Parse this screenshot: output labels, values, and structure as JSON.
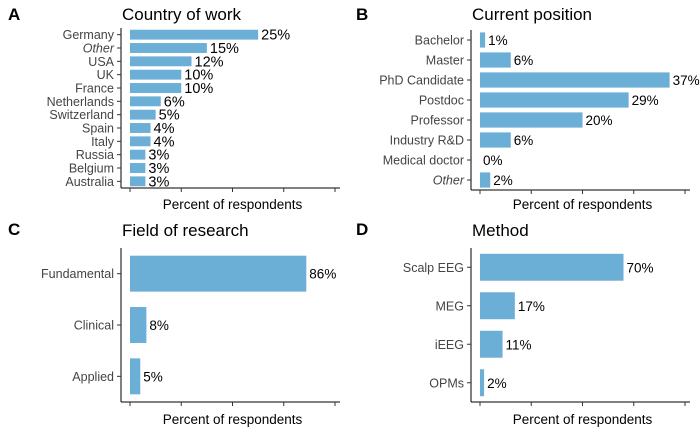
{
  "colors": {
    "bar": "#6baed6",
    "text": "#000000",
    "tick_text": "#444444"
  },
  "chart_data": [
    {
      "letter": "A",
      "type": "bar",
      "orientation": "horizontal",
      "title": "Country of work",
      "xlabel": "Percent of respondents",
      "xlim": [
        0,
        40
      ],
      "categories": [
        "Germany",
        "Other",
        "USA",
        "UK",
        "France",
        "Netherlands",
        "Switzerland",
        "Spain",
        "Italy",
        "Russia",
        "Belgium",
        "Australia"
      ],
      "italic_categories": [
        "Other"
      ],
      "values": [
        25,
        15,
        12,
        10,
        10,
        6,
        5,
        4,
        4,
        3,
        3,
        3
      ],
      "value_labels": [
        "25%",
        "15%",
        "12%",
        "10%",
        "10%",
        "6%",
        "5%",
        "4%",
        "4%",
        "3%",
        "3%",
        "3%"
      ]
    },
    {
      "letter": "B",
      "type": "bar",
      "orientation": "horizontal",
      "title": "Current position",
      "xlabel": "Percent of respondents",
      "xlim": [
        0,
        40
      ],
      "categories": [
        "Bachelor",
        "Master",
        "PhD Candidate",
        "Postdoc",
        "Professor",
        "Industry R&D",
        "Medical doctor",
        "Other"
      ],
      "italic_categories": [
        "Other"
      ],
      "values": [
        1,
        6,
        37,
        29,
        20,
        6,
        0,
        2
      ],
      "value_labels": [
        "1%",
        "6%",
        "37%",
        "29%",
        "20%",
        "6%",
        "0%",
        "2%"
      ]
    },
    {
      "letter": "C",
      "type": "bar",
      "orientation": "horizontal",
      "title": "Field of research",
      "xlabel": "Percent of respondents",
      "xlim": [
        0,
        100
      ],
      "categories": [
        "Fundamental",
        "Clinical",
        "Applied"
      ],
      "italic_categories": [],
      "values": [
        86,
        8,
        5
      ],
      "value_labels": [
        "86%",
        "8%",
        "5%"
      ]
    },
    {
      "letter": "D",
      "type": "bar",
      "orientation": "horizontal",
      "title": "Method",
      "xlabel": "Percent of respondents",
      "xlim": [
        0,
        100
      ],
      "categories": [
        "Scalp EEG",
        "MEG",
        "iEEG",
        "OPMs"
      ],
      "italic_categories": [],
      "values": [
        70,
        17,
        11,
        2
      ],
      "value_labels": [
        "70%",
        "17%",
        "11%",
        "2%"
      ]
    }
  ]
}
